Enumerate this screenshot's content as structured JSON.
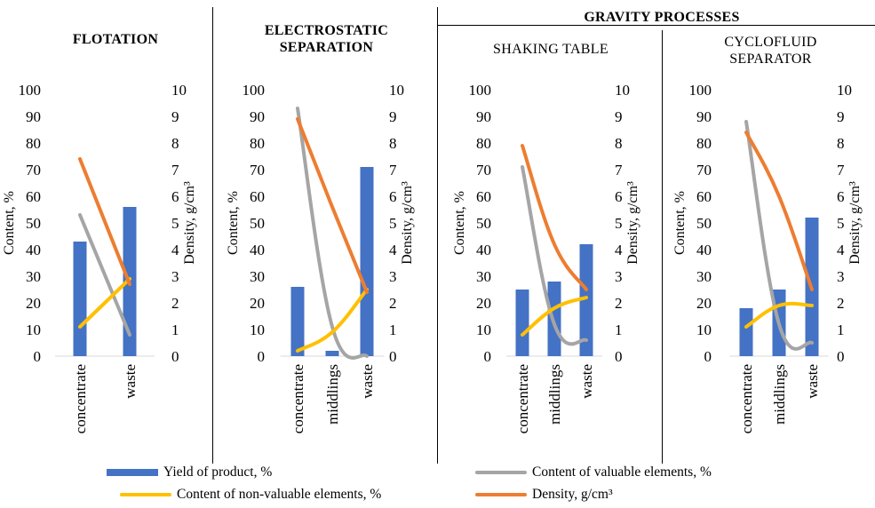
{
  "colors": {
    "yield": "#4472C4",
    "valuable": "#A5A5A5",
    "non_valuable": "#FFC000",
    "density": "#ED7D31"
  },
  "group_title": "GRAVITY PROCESSES",
  "legend": {
    "yield": "Yield of product, %",
    "valuable": "Content of valuable elements, %",
    "non_valuable": "Content of non-valuable elements, %",
    "density": "Density, g/cm³"
  },
  "axes": {
    "left_label": "Content, %",
    "right_label": "Density, g/cm³",
    "left_ticks": [
      "0",
      "10",
      "20",
      "30",
      "40",
      "50",
      "60",
      "70",
      "80",
      "90",
      "100"
    ],
    "right_ticks": [
      "0",
      "1",
      "2",
      "3",
      "4",
      "5",
      "6",
      "7",
      "8",
      "9",
      "10"
    ],
    "left_range": [
      0,
      100
    ],
    "right_range": [
      0,
      10
    ]
  },
  "panels": [
    {
      "title": "FLOTATION",
      "title_style": "bold"
    },
    {
      "title": "ELECTROSTATIC\nSEPARATION",
      "title_style": "bold"
    },
    {
      "title": "SHAKING TABLE",
      "title_style": "normal"
    },
    {
      "title": "CYCLOFLUID\nSEPARATOR",
      "title_style": "normal"
    }
  ],
  "chart_data": [
    {
      "type": "bar",
      "title": "FLOTATION",
      "categories": [
        "concentrate",
        "waste"
      ],
      "ylabel": "Content, %",
      "y2label": "Density, g/cm³",
      "ylim": [
        0,
        100
      ],
      "y2lim": [
        0,
        10
      ],
      "grid": false,
      "series": [
        {
          "name": "Yield of product, %",
          "kind": "bar",
          "axis": "left",
          "values": [
            43,
            56
          ]
        },
        {
          "name": "Content of valuable elements, %",
          "kind": "line",
          "axis": "left",
          "values": [
            53,
            8
          ]
        },
        {
          "name": "Content of non-valuable elements, %",
          "kind": "line",
          "axis": "left",
          "values": [
            11,
            29
          ]
        },
        {
          "name": "Density, g/cm³",
          "kind": "line",
          "axis": "right",
          "values": [
            7.4,
            2.7
          ]
        }
      ]
    },
    {
      "type": "bar",
      "title": "ELECTROSTATIC SEPARATION",
      "categories": [
        "concentrate",
        "middlings",
        "waste"
      ],
      "ylabel": "Content, %",
      "y2label": "Density, g/cm³",
      "ylim": [
        0,
        100
      ],
      "y2lim": [
        0,
        10
      ],
      "grid": false,
      "series": [
        {
          "name": "Yield of product, %",
          "kind": "bar",
          "axis": "left",
          "values": [
            26,
            2,
            71
          ]
        },
        {
          "name": "Content of valuable elements, %",
          "kind": "line",
          "axis": "left",
          "values": [
            93,
            11,
            0
          ]
        },
        {
          "name": "Content of non-valuable elements, %",
          "kind": "line",
          "axis": "left",
          "values": [
            2,
            9,
            25
          ]
        },
        {
          "name": "Density, g/cm³",
          "kind": "line",
          "axis": "right",
          "values": [
            8.9,
            5.6,
            2.4
          ]
        }
      ]
    },
    {
      "type": "bar",
      "title": "SHAKING TABLE",
      "categories": [
        "concentrate",
        "middlings",
        "waste"
      ],
      "ylabel": "Content, %",
      "y2label": "Density, g/cm³",
      "ylim": [
        0,
        100
      ],
      "y2lim": [
        0,
        10
      ],
      "grid": false,
      "series": [
        {
          "name": "Yield of product, %",
          "kind": "bar",
          "axis": "left",
          "values": [
            25,
            28,
            42
          ]
        },
        {
          "name": "Content of valuable elements, %",
          "kind": "line",
          "axis": "left",
          "values": [
            71,
            12,
            6
          ]
        },
        {
          "name": "Content of non-valuable elements, %",
          "kind": "line",
          "axis": "left",
          "values": [
            8,
            18,
            22
          ]
        },
        {
          "name": "Density, g/cm³",
          "kind": "line",
          "axis": "right",
          "values": [
            7.9,
            4.2,
            2.5
          ]
        }
      ]
    },
    {
      "type": "bar",
      "title": "CYCLOFLUID SEPARATOR",
      "categories": [
        "concentrate",
        "middlings",
        "waste"
      ],
      "ylabel": "Content, %",
      "y2label": "Density, g/cm³",
      "ylim": [
        0,
        100
      ],
      "y2lim": [
        0,
        10
      ],
      "grid": false,
      "series": [
        {
          "name": "Yield of product, %",
          "kind": "bar",
          "axis": "left",
          "values": [
            18,
            25,
            52
          ]
        },
        {
          "name": "Content of valuable elements, %",
          "kind": "line",
          "axis": "left",
          "values": [
            88,
            12,
            5
          ]
        },
        {
          "name": "Content of non-valuable elements, %",
          "kind": "line",
          "axis": "left",
          "values": [
            11,
            19,
            19
          ]
        },
        {
          "name": "Density, g/cm³",
          "kind": "line",
          "axis": "right",
          "values": [
            8.4,
            6.0,
            2.5
          ]
        }
      ]
    }
  ]
}
